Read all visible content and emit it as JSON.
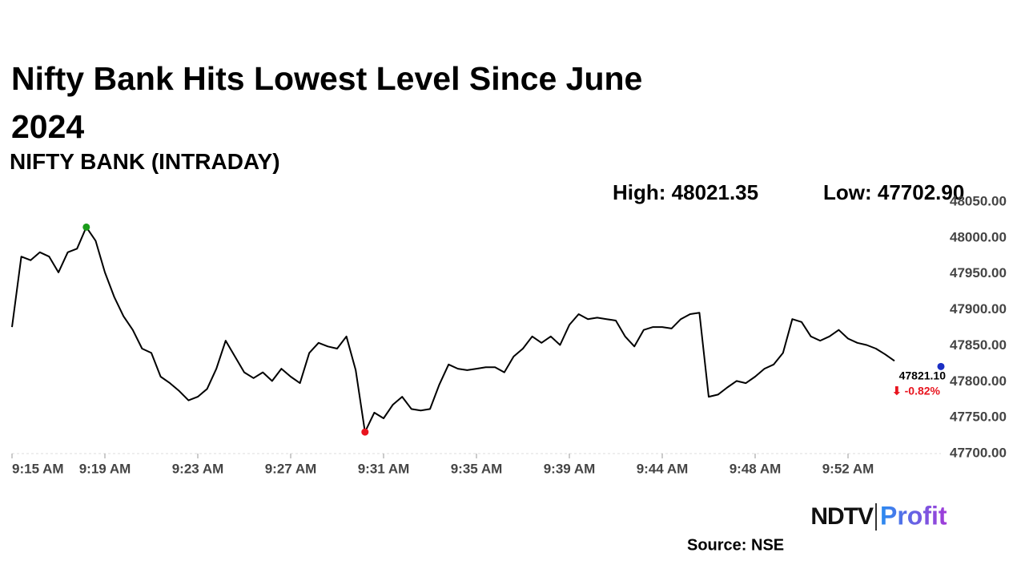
{
  "chart_data": {
    "type": "line",
    "title": "Nifty Bank Hits Lowest Level Since June 2024",
    "subtitle": "NIFTY BANK (INTRADAY)",
    "annotations": {
      "high": "High: 48021.35",
      "low": "Low: 47702.90",
      "last": "47821.10",
      "change": "⬇ -0.82%"
    },
    "source": "Source: NSE",
    "logo": {
      "left": "NDTV",
      "right": "Profit"
    },
    "color": "#000000",
    "high_color": "#1a9c1a",
    "low_color": "#e8141e",
    "last_color": "#1b2fc4",
    "values": [
      47876,
      47974,
      47969,
      47980,
      47974,
      47952,
      47980,
      47985,
      48015,
      47996,
      47952,
      47918,
      47891,
      47872,
      47846,
      47840,
      47807,
      47798,
      47787,
      47774,
      47779,
      47790,
      47818,
      47857,
      47835,
      47813,
      47805,
      47813,
      47801,
      47818,
      47807,
      47798,
      47840,
      47854,
      47849,
      47846,
      47863,
      47816,
      47730,
      47757,
      47749,
      47768,
      47779,
      47762,
      47760,
      47762,
      47796,
      47824,
      47818,
      47816,
      47818,
      47820,
      47820,
      47813,
      47835,
      47846,
      47863,
      47854,
      47863,
      47851,
      47879,
      47894,
      47887,
      47889,
      47887,
      47885,
      47863,
      47849,
      47872,
      47876,
      47876,
      47874,
      47887,
      47894,
      47896,
      47779,
      47782,
      47792,
      47801,
      47798,
      47807,
      47818,
      47824,
      47840,
      47887,
      47883,
      47863,
      47857,
      47863,
      47872,
      47860,
      47854,
      47851,
      47846,
      47838,
      47829,
      null,
      null,
      null,
      null,
      47821.1
    ],
    "ylim": [
      47700,
      48050
    ],
    "yticks": [
      {
        "value": 47700,
        "label": "47700.00"
      },
      {
        "value": 47750,
        "label": "47750.00"
      },
      {
        "value": 47800,
        "label": "47800.00"
      },
      {
        "value": 47850,
        "label": "47850.00"
      },
      {
        "value": 47900,
        "label": "47900.00"
      },
      {
        "value": 47950,
        "label": "47950.00"
      },
      {
        "value": 48000,
        "label": "48000.00"
      },
      {
        "value": 48050,
        "label": "48050.00"
      }
    ],
    "xticks": [
      {
        "value": 0,
        "label": "9:15 AM"
      },
      {
        "value": 10,
        "label": "9:19 AM"
      },
      {
        "value": 20,
        "label": "9:23 AM"
      },
      {
        "value": 30,
        "label": "9:27 AM"
      },
      {
        "value": 40,
        "label": "9:31 AM"
      },
      {
        "value": 50,
        "label": "9:35 AM"
      },
      {
        "value": 60,
        "label": "9:39 AM"
      },
      {
        "value": 70,
        "label": "9:44 AM"
      },
      {
        "value": 80,
        "label": "9:48 AM"
      },
      {
        "value": 90,
        "label": "9:52 AM"
      }
    ]
  }
}
